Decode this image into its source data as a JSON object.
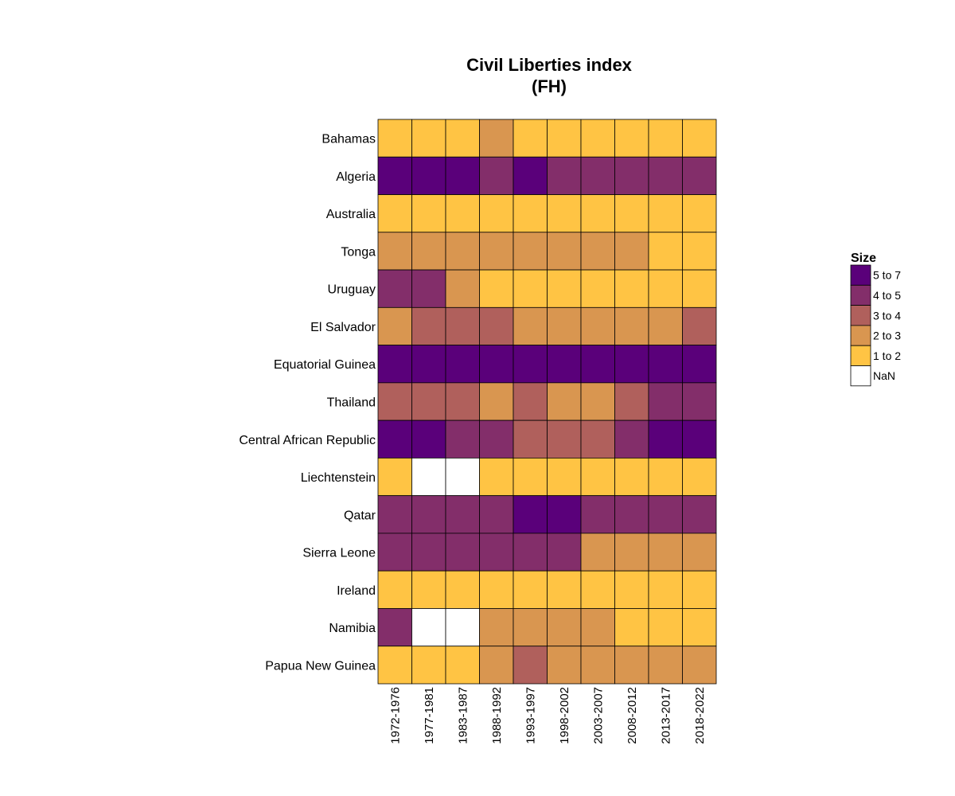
{
  "chart_data": {
    "type": "heatmap",
    "title": [
      "Civil Liberties index",
      "(FH)"
    ],
    "xlabel": "",
    "ylabel": "",
    "x": [
      "1972-1976",
      "1977-1981",
      "1983-1987",
      "1988-1992",
      "1993-1997",
      "1998-2002",
      "2003-2007",
      "2008-2012",
      "2013-2017",
      "2018-2022"
    ],
    "y": [
      "Bahamas",
      "Algeria",
      "Australia",
      "Tonga",
      "Uruguay",
      "El Salvador",
      "Equatorial Guinea",
      "Thailand",
      "Central African Republic",
      "Liechtenstein",
      "Qatar",
      "Sierra Leone",
      "Ireland",
      "Namibia",
      "Papua New Guinea"
    ],
    "values": [
      [
        "1 to 2",
        "1 to 2",
        "1 to 2",
        "2 to 3",
        "1 to 2",
        "1 to 2",
        "1 to 2",
        "1 to 2",
        "1 to 2",
        "1 to 2"
      ],
      [
        "5 to 7",
        "5 to 7",
        "5 to 7",
        "4 to 5",
        "5 to 7",
        "4 to 5",
        "4 to 5",
        "4 to 5",
        "4 to 5",
        "4 to 5"
      ],
      [
        "1 to 2",
        "1 to 2",
        "1 to 2",
        "1 to 2",
        "1 to 2",
        "1 to 2",
        "1 to 2",
        "1 to 2",
        "1 to 2",
        "1 to 2"
      ],
      [
        "2 to 3",
        "2 to 3",
        "2 to 3",
        "2 to 3",
        "2 to 3",
        "2 to 3",
        "2 to 3",
        "2 to 3",
        "1 to 2",
        "1 to 2"
      ],
      [
        "4 to 5",
        "4 to 5",
        "2 to 3",
        "1 to 2",
        "1 to 2",
        "1 to 2",
        "1 to 2",
        "1 to 2",
        "1 to 2",
        "1 to 2"
      ],
      [
        "2 to 3",
        "3 to 4",
        "3 to 4",
        "3 to 4",
        "2 to 3",
        "2 to 3",
        "2 to 3",
        "2 to 3",
        "2 to 3",
        "3 to 4"
      ],
      [
        "5 to 7",
        "5 to 7",
        "5 to 7",
        "5 to 7",
        "5 to 7",
        "5 to 7",
        "5 to 7",
        "5 to 7",
        "5 to 7",
        "5 to 7"
      ],
      [
        "3 to 4",
        "3 to 4",
        "3 to 4",
        "2 to 3",
        "3 to 4",
        "2 to 3",
        "2 to 3",
        "3 to 4",
        "4 to 5",
        "4 to 5"
      ],
      [
        "5 to 7",
        "5 to 7",
        "4 to 5",
        "4 to 5",
        "3 to 4",
        "3 to 4",
        "3 to 4",
        "4 to 5",
        "5 to 7",
        "5 to 7"
      ],
      [
        "1 to 2",
        "NaN",
        "NaN",
        "1 to 2",
        "1 to 2",
        "1 to 2",
        "1 to 2",
        "1 to 2",
        "1 to 2",
        "1 to 2"
      ],
      [
        "4 to 5",
        "4 to 5",
        "4 to 5",
        "4 to 5",
        "5 to 7",
        "5 to 7",
        "4 to 5",
        "4 to 5",
        "4 to 5",
        "4 to 5"
      ],
      [
        "4 to 5",
        "4 to 5",
        "4 to 5",
        "4 to 5",
        "4 to 5",
        "4 to 5",
        "2 to 3",
        "2 to 3",
        "2 to 3",
        "2 to 3"
      ],
      [
        "1 to 2",
        "1 to 2",
        "1 to 2",
        "1 to 2",
        "1 to 2",
        "1 to 2",
        "1 to 2",
        "1 to 2",
        "1 to 2",
        "1 to 2"
      ],
      [
        "4 to 5",
        "NaN",
        "NaN",
        "2 to 3",
        "2 to 3",
        "2 to 3",
        "2 to 3",
        "1 to 2",
        "1 to 2",
        "1 to 2"
      ],
      [
        "1 to 2",
        "1 to 2",
        "1 to 2",
        "2 to 3",
        "3 to 4",
        "2 to 3",
        "2 to 3",
        "2 to 3",
        "2 to 3",
        "2 to 3"
      ]
    ],
    "legend": {
      "title": "Size",
      "placement": "right",
      "items": [
        {
          "label": "5 to 7",
          "color": "#5a007a"
        },
        {
          "label": "4 to 5",
          "color": "#832e6a"
        },
        {
          "label": "3 to 4",
          "color": "#b0605c"
        },
        {
          "label": "2 to 3",
          "color": "#d99650"
        },
        {
          "label": "1 to 2",
          "color": "#ffc444"
        },
        {
          "label": "NaN",
          "color": "#ffffff"
        }
      ]
    }
  }
}
